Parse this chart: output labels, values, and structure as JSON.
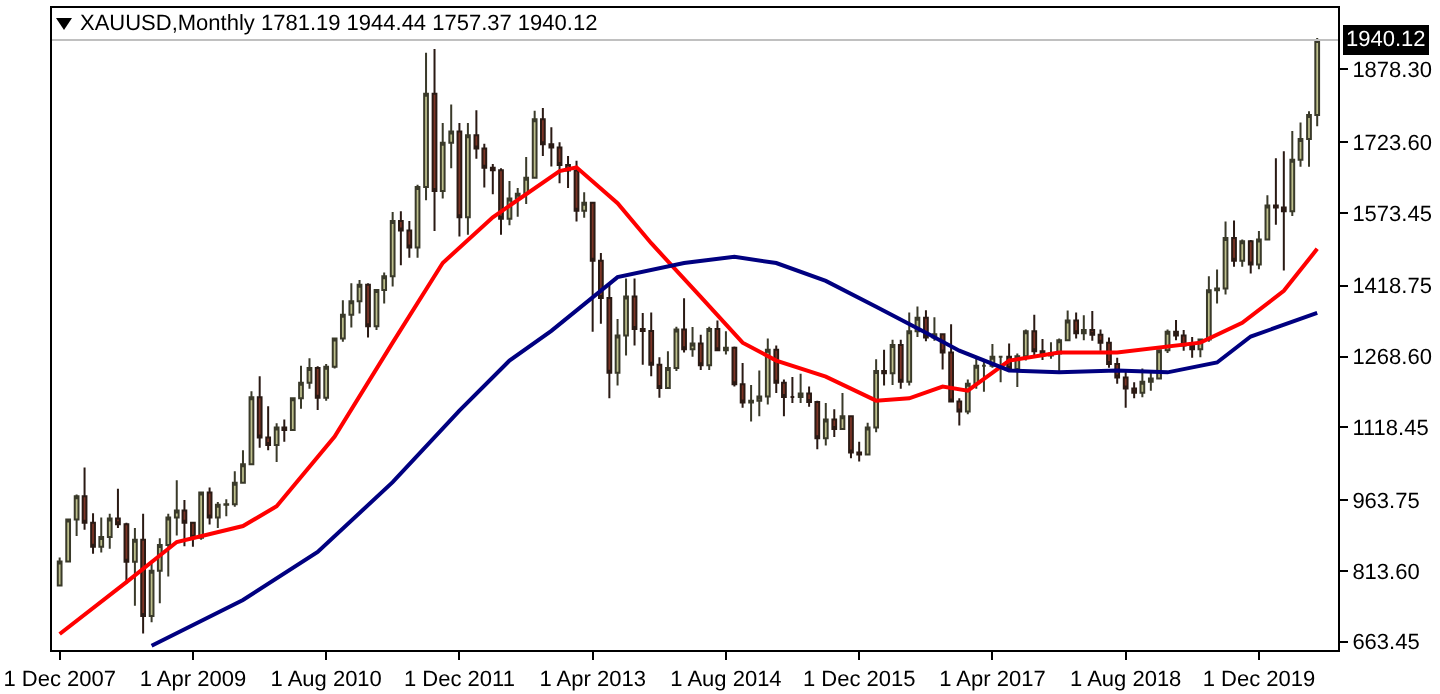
{
  "chart_data": {
    "type": "candlestick",
    "title": "XAUUSD,Monthly 1781.19 1944.44 1757.37 1940.12",
    "x": [
      "2007-12",
      "2008-01",
      "2008-02",
      "2008-03",
      "2008-04",
      "2008-05",
      "2008-06",
      "2008-07",
      "2008-08",
      "2008-09",
      "2008-10",
      "2008-11",
      "2008-12",
      "2009-01",
      "2009-02",
      "2009-03",
      "2009-04",
      "2009-05",
      "2009-06",
      "2009-07",
      "2009-08",
      "2009-09",
      "2009-10",
      "2009-11",
      "2009-12",
      "2010-01",
      "2010-02",
      "2010-03",
      "2010-04",
      "2010-05",
      "2010-06",
      "2010-07",
      "2010-08",
      "2010-09",
      "2010-10",
      "2010-11",
      "2010-12",
      "2011-01",
      "2011-02",
      "2011-03",
      "2011-04",
      "2011-05",
      "2011-06",
      "2011-07",
      "2011-08",
      "2011-09",
      "2011-10",
      "2011-11",
      "2011-12",
      "2012-01",
      "2012-02",
      "2012-03",
      "2012-04",
      "2012-05",
      "2012-06",
      "2012-07",
      "2012-08",
      "2012-09",
      "2012-10",
      "2012-11",
      "2012-12",
      "2013-01",
      "2013-02",
      "2013-03",
      "2013-04",
      "2013-05",
      "2013-06",
      "2013-07",
      "2013-08",
      "2013-09",
      "2013-10",
      "2013-11",
      "2013-12",
      "2014-01",
      "2014-02",
      "2014-03",
      "2014-04",
      "2014-05",
      "2014-06",
      "2014-07",
      "2014-08",
      "2014-09",
      "2014-10",
      "2014-11",
      "2014-12",
      "2015-01",
      "2015-02",
      "2015-03",
      "2015-04",
      "2015-05",
      "2015-06",
      "2015-07",
      "2015-08",
      "2015-09",
      "2015-10",
      "2015-11",
      "2015-12",
      "2016-01",
      "2016-02",
      "2016-03",
      "2016-04",
      "2016-05",
      "2016-06",
      "2016-07",
      "2016-08",
      "2016-09",
      "2016-10",
      "2016-11",
      "2016-12",
      "2017-01",
      "2017-02",
      "2017-03",
      "2017-04",
      "2017-05",
      "2017-06",
      "2017-07",
      "2017-08",
      "2017-09",
      "2017-10",
      "2017-11",
      "2017-12",
      "2018-01",
      "2018-02",
      "2018-03",
      "2018-04",
      "2018-05",
      "2018-06",
      "2018-07",
      "2018-08",
      "2018-09",
      "2018-10",
      "2018-11",
      "2018-12",
      "2019-01",
      "2019-02",
      "2019-03",
      "2019-04",
      "2019-05",
      "2019-06",
      "2019-07",
      "2019-08",
      "2019-09",
      "2019-10",
      "2019-11",
      "2019-12",
      "2020-01",
      "2020-02",
      "2020-03",
      "2020-04",
      "2020-05",
      "2020-06",
      "2020-07"
    ],
    "ohlc": [
      [
        783,
        842,
        782,
        834
      ],
      [
        834,
        925,
        834,
        923
      ],
      [
        923,
        976,
        888,
        972
      ],
      [
        972,
        1033,
        901,
        916
      ],
      [
        916,
        936,
        850,
        865
      ],
      [
        865,
        927,
        853,
        886
      ],
      [
        886,
        935,
        861,
        925
      ],
      [
        925,
        988,
        905,
        913
      ],
      [
        913,
        916,
        786,
        833
      ],
      [
        833,
        905,
        740,
        880
      ],
      [
        880,
        935,
        681,
        718
      ],
      [
        718,
        830,
        705,
        814
      ],
      [
        814,
        883,
        745,
        869
      ],
      [
        869,
        935,
        802,
        927
      ],
      [
        927,
        1006,
        889,
        942
      ],
      [
        942,
        964,
        866,
        916
      ],
      [
        916,
        916,
        865,
        884
      ],
      [
        884,
        981,
        880,
        980
      ],
      [
        980,
        991,
        912,
        927
      ],
      [
        927,
        960,
        905,
        954
      ],
      [
        954,
        966,
        930,
        955
      ],
      [
        955,
        1025,
        950,
        1001
      ],
      [
        1001,
        1070,
        1000,
        1040
      ],
      [
        1040,
        1195,
        1040,
        1182
      ],
      [
        1182,
        1227,
        1075,
        1097
      ],
      [
        1097,
        1163,
        1070,
        1081
      ],
      [
        1081,
        1127,
        1045,
        1118
      ],
      [
        1118,
        1135,
        1088,
        1113
      ],
      [
        1113,
        1180,
        1112,
        1180
      ],
      [
        1180,
        1249,
        1158,
        1213
      ],
      [
        1213,
        1265,
        1200,
        1244
      ],
      [
        1244,
        1248,
        1155,
        1181
      ],
      [
        1181,
        1253,
        1175,
        1247
      ],
      [
        1247,
        1308,
        1243,
        1307
      ],
      [
        1307,
        1388,
        1300,
        1357
      ],
      [
        1357,
        1424,
        1330,
        1386
      ],
      [
        1386,
        1431,
        1360,
        1421
      ],
      [
        1421,
        1424,
        1309,
        1333
      ],
      [
        1333,
        1412,
        1325,
        1410
      ],
      [
        1410,
        1447,
        1381,
        1439
      ],
      [
        1439,
        1575,
        1417,
        1556
      ],
      [
        1556,
        1577,
        1462,
        1536
      ],
      [
        1536,
        1556,
        1478,
        1500
      ],
      [
        1500,
        1633,
        1478,
        1628
      ],
      [
        1628,
        1913,
        1600,
        1826
      ],
      [
        1826,
        1921,
        1535,
        1620
      ],
      [
        1620,
        1764,
        1604,
        1722
      ],
      [
        1722,
        1803,
        1668,
        1746
      ],
      [
        1746,
        1764,
        1523,
        1564
      ],
      [
        1564,
        1764,
        1527,
        1738
      ],
      [
        1738,
        1791,
        1688,
        1710
      ],
      [
        1710,
        1720,
        1627,
        1669
      ],
      [
        1669,
        1677,
        1613,
        1664
      ],
      [
        1664,
        1668,
        1527,
        1561
      ],
      [
        1561,
        1641,
        1547,
        1604
      ],
      [
        1604,
        1626,
        1565,
        1614
      ],
      [
        1614,
        1692,
        1592,
        1648
      ],
      [
        1648,
        1790,
        1646,
        1772
      ],
      [
        1772,
        1796,
        1694,
        1719
      ],
      [
        1719,
        1755,
        1672,
        1712
      ],
      [
        1712,
        1723,
        1636,
        1675
      ],
      [
        1675,
        1694,
        1626,
        1663
      ],
      [
        1663,
        1684,
        1555,
        1578
      ],
      [
        1578,
        1617,
        1563,
        1595
      ],
      [
        1595,
        1597,
        1321,
        1472
      ],
      [
        1472,
        1488,
        1338,
        1393
      ],
      [
        1393,
        1424,
        1180,
        1234
      ],
      [
        1234,
        1348,
        1207,
        1313
      ],
      [
        1313,
        1434,
        1271,
        1396
      ],
      [
        1396,
        1434,
        1292,
        1327
      ],
      [
        1327,
        1361,
        1251,
        1323
      ],
      [
        1323,
        1362,
        1227,
        1251
      ],
      [
        1251,
        1267,
        1181,
        1202
      ],
      [
        1202,
        1280,
        1202,
        1244
      ],
      [
        1244,
        1332,
        1238,
        1326
      ],
      [
        1326,
        1392,
        1277,
        1284
      ],
      [
        1284,
        1331,
        1268,
        1296
      ],
      [
        1296,
        1315,
        1240,
        1250
      ],
      [
        1250,
        1332,
        1240,
        1327
      ],
      [
        1327,
        1345,
        1281,
        1282
      ],
      [
        1282,
        1322,
        1273,
        1287
      ],
      [
        1287,
        1290,
        1205,
        1210
      ],
      [
        1210,
        1255,
        1160,
        1171
      ],
      [
        1171,
        1208,
        1131,
        1175
      ],
      [
        1175,
        1239,
        1142,
        1184
      ],
      [
        1184,
        1307,
        1167,
        1283
      ],
      [
        1283,
        1292,
        1191,
        1213
      ],
      [
        1213,
        1220,
        1142,
        1183
      ],
      [
        1183,
        1225,
        1170,
        1183
      ],
      [
        1183,
        1232,
        1170,
        1190
      ],
      [
        1190,
        1205,
        1162,
        1172
      ],
      [
        1172,
        1175,
        1072,
        1095
      ],
      [
        1095,
        1170,
        1080,
        1135
      ],
      [
        1135,
        1157,
        1098,
        1115
      ],
      [
        1115,
        1191,
        1113,
        1142
      ],
      [
        1142,
        1142,
        1053,
        1065
      ],
      [
        1065,
        1088,
        1046,
        1061
      ],
      [
        1061,
        1128,
        1060,
        1118
      ],
      [
        1118,
        1263,
        1108,
        1238
      ],
      [
        1238,
        1283,
        1207,
        1233
      ],
      [
        1233,
        1304,
        1208,
        1293
      ],
      [
        1293,
        1304,
        1200,
        1215
      ],
      [
        1215,
        1362,
        1207,
        1322
      ],
      [
        1322,
        1375,
        1310,
        1351
      ],
      [
        1351,
        1367,
        1301,
        1309
      ],
      [
        1309,
        1352,
        1302,
        1316
      ],
      [
        1316,
        1318,
        1241,
        1277
      ],
      [
        1277,
        1337,
        1171,
        1173
      ],
      [
        1173,
        1180,
        1122,
        1152
      ],
      [
        1152,
        1220,
        1146,
        1211
      ],
      [
        1211,
        1264,
        1200,
        1249
      ],
      [
        1249,
        1261,
        1194,
        1249
      ],
      [
        1249,
        1295,
        1245,
        1268
      ],
      [
        1268,
        1270,
        1214,
        1268
      ],
      [
        1268,
        1296,
        1237,
        1242
      ],
      [
        1242,
        1275,
        1204,
        1269
      ],
      [
        1269,
        1326,
        1260,
        1322
      ],
      [
        1322,
        1357,
        1271,
        1280
      ],
      [
        1280,
        1306,
        1261,
        1271
      ],
      [
        1271,
        1299,
        1264,
        1275
      ],
      [
        1275,
        1307,
        1236,
        1303
      ],
      [
        1303,
        1366,
        1302,
        1345
      ],
      [
        1345,
        1362,
        1307,
        1318
      ],
      [
        1318,
        1356,
        1303,
        1325
      ],
      [
        1325,
        1365,
        1302,
        1315
      ],
      [
        1315,
        1326,
        1281,
        1298
      ],
      [
        1298,
        1309,
        1245,
        1253
      ],
      [
        1253,
        1266,
        1211,
        1224
      ],
      [
        1224,
        1236,
        1160,
        1201
      ],
      [
        1201,
        1214,
        1180,
        1192
      ],
      [
        1192,
        1243,
        1182,
        1215
      ],
      [
        1215,
        1237,
        1196,
        1222
      ],
      [
        1222,
        1284,
        1221,
        1282
      ],
      [
        1282,
        1326,
        1276,
        1321
      ],
      [
        1321,
        1346,
        1303,
        1313
      ],
      [
        1313,
        1325,
        1281,
        1292
      ],
      [
        1292,
        1310,
        1266,
        1284
      ],
      [
        1284,
        1306,
        1267,
        1305
      ],
      [
        1305,
        1439,
        1300,
        1409
      ],
      [
        1409,
        1453,
        1381,
        1413
      ],
      [
        1413,
        1555,
        1400,
        1520
      ],
      [
        1520,
        1557,
        1459,
        1472
      ],
      [
        1472,
        1517,
        1459,
        1513
      ],
      [
        1513,
        1516,
        1445,
        1464
      ],
      [
        1464,
        1535,
        1454,
        1517
      ],
      [
        1517,
        1611,
        1517,
        1589
      ],
      [
        1589,
        1689,
        1548,
        1585
      ],
      [
        1585,
        1704,
        1451,
        1577
      ],
      [
        1577,
        1747,
        1567,
        1686
      ],
      [
        1686,
        1765,
        1671,
        1730
      ],
      [
        1730,
        1789,
        1671,
        1781
      ],
      [
        1781.19,
        1944.44,
        1757.37,
        1940.12
      ]
    ],
    "series": [
      {
        "type": "line",
        "color": "#ff0000",
        "x": [
          "2007-12",
          "2008-08",
          "2009-02",
          "2009-10",
          "2010-02",
          "2010-09",
          "2011-04",
          "2011-10",
          "2012-04",
          "2012-12",
          "2013-02",
          "2013-07",
          "2013-11",
          "2014-05",
          "2014-10",
          "2015-02",
          "2015-08",
          "2016-02",
          "2016-06",
          "2016-10",
          "2017-01",
          "2017-06",
          "2017-12",
          "2018-07",
          "2019-05",
          "2019-10",
          "2020-03",
          "2020-07"
        ],
        "values": [
          680,
          790,
          875,
          909,
          951,
          1099,
          1298,
          1467,
          1564,
          1662,
          1670,
          1594,
          1509,
          1395,
          1298,
          1260,
          1226,
          1175,
          1180,
          1205,
          1196,
          1260,
          1277,
          1277,
          1298,
          1340,
          1408,
          1497
        ]
      },
      {
        "type": "line",
        "color": "#000080",
        "x": [
          "2008-11",
          "2009-10",
          "2010-07",
          "2011-04",
          "2011-12",
          "2012-06",
          "2012-11",
          "2013-07",
          "2014-03",
          "2014-09",
          "2015-02",
          "2015-08",
          "2016-02",
          "2016-08",
          "2016-12",
          "2017-06",
          "2017-12",
          "2018-07",
          "2019-01",
          "2019-07",
          "2019-11",
          "2020-07"
        ],
        "values": [
          655,
          752,
          854,
          1002,
          1154,
          1260,
          1323,
          1437,
          1467,
          1480,
          1467,
          1429,
          1374,
          1319,
          1281,
          1239,
          1235,
          1239,
          1235,
          1256,
          1311,
          1361
        ]
      }
    ],
    "xlim": [
      "2007-11-03",
      "2020-09-15"
    ],
    "xticks": [
      {
        "value": "2007-12-01",
        "label": "1 Dec 2007"
      },
      {
        "value": "2009-04-01",
        "label": "1 Apr 2009"
      },
      {
        "value": "2010-08-01",
        "label": "1 Aug 2010"
      },
      {
        "value": "2011-12-01",
        "label": "1 Dec 2011"
      },
      {
        "value": "2013-04-01",
        "label": "1 Apr 2013"
      },
      {
        "value": "2014-08-01",
        "label": "1 Aug 2014"
      },
      {
        "value": "2015-12-01",
        "label": "1 Dec 2015"
      },
      {
        "value": "2017-04-01",
        "label": "1 Apr 2017"
      },
      {
        "value": "2018-08-01",
        "label": "1 Aug 2018"
      },
      {
        "value": "2019-12-01",
        "label": "1 Dec 2019"
      }
    ],
    "ylim": [
      646,
      2008
    ],
    "yticks": [
      {
        "value": 663.45,
        "label": "663.45"
      },
      {
        "value": 813.6,
        "label": "813.60"
      },
      {
        "value": 963.75,
        "label": "963.75"
      },
      {
        "value": 1118.45,
        "label": "1118.45"
      },
      {
        "value": 1268.6,
        "label": "1268.60"
      },
      {
        "value": 1418.75,
        "label": "1418.75"
      },
      {
        "value": 1573.45,
        "label": "1573.45"
      },
      {
        "value": 1723.6,
        "label": "1723.60"
      },
      {
        "value": 1878.3,
        "label": "1878.30"
      }
    ],
    "ref_lines": [
      {
        "axis": "y",
        "value": 1940.12,
        "label": "1940.12",
        "color": "#c0c0c0"
      }
    ],
    "grid": false
  }
}
